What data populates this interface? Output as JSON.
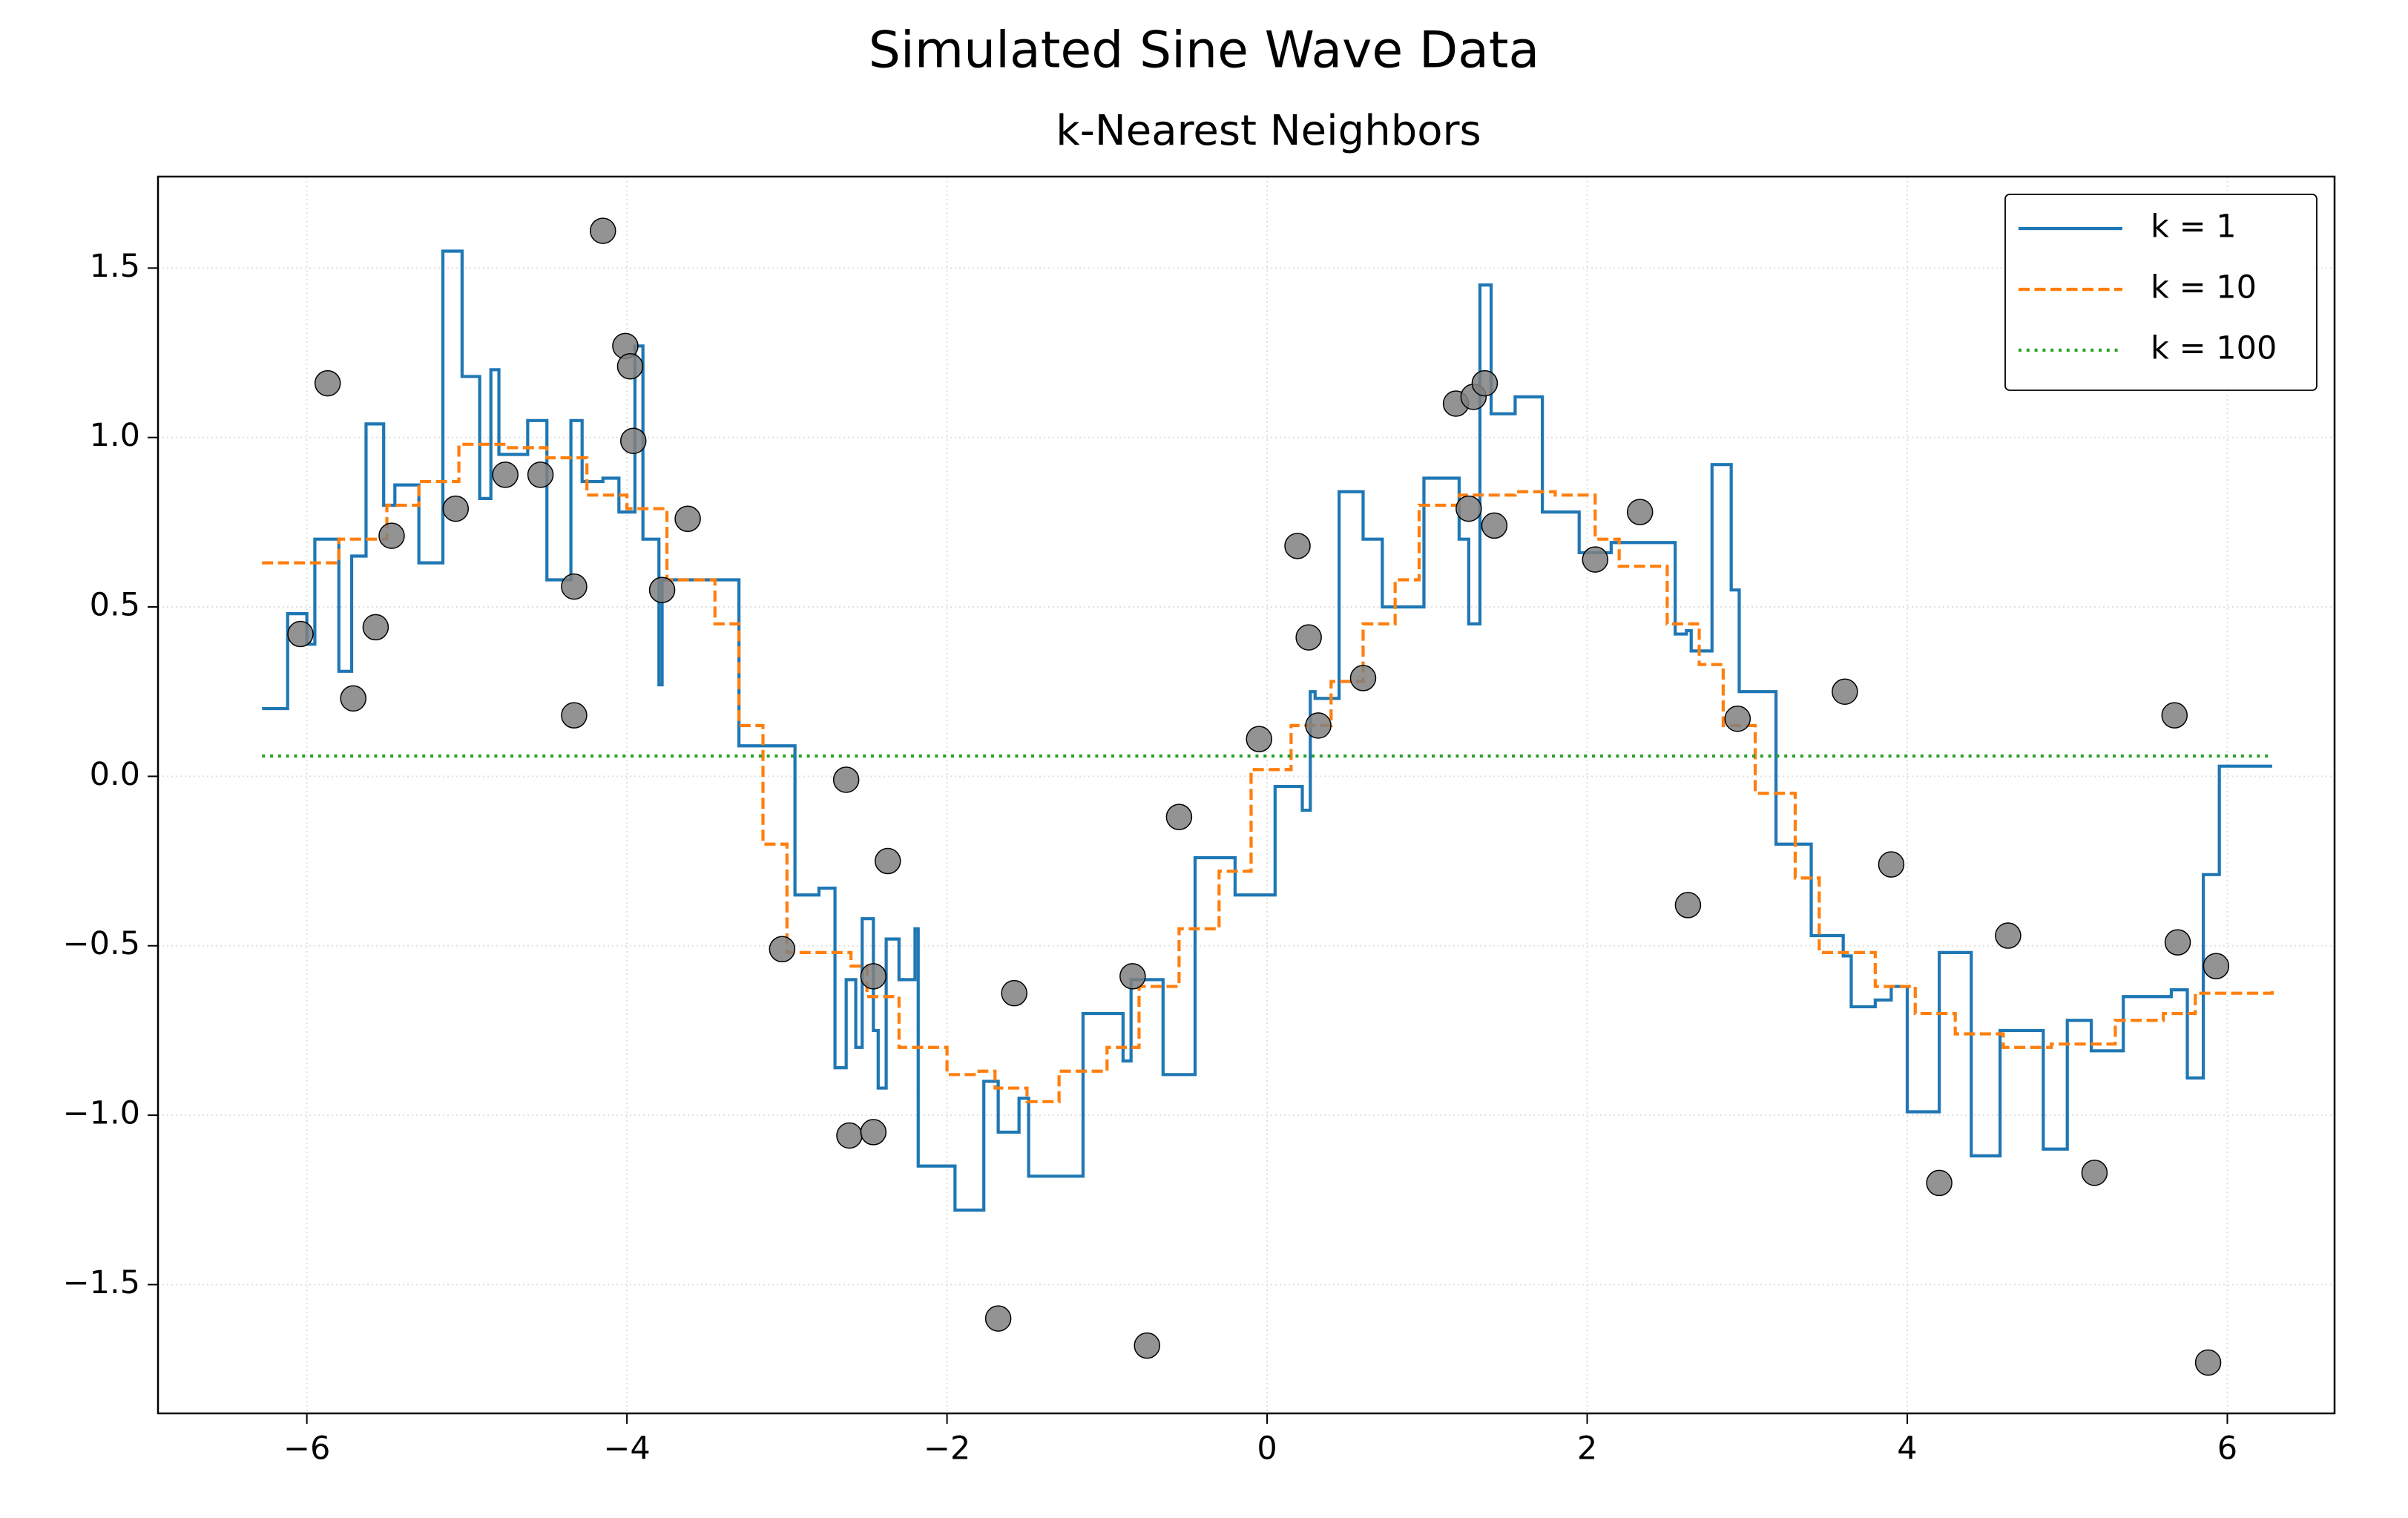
{
  "chart_data": {
    "type": "line",
    "title": "Simulated Sine Wave Data",
    "subtitle": "k-Nearest Neighbors",
    "step": "post",
    "grid": true,
    "legend": "upper right",
    "xlim": [
      -6.93,
      6.67
    ],
    "ylim": [
      -1.88,
      1.77
    ],
    "xticks": [
      {
        "value": -6,
        "label": "−6"
      },
      {
        "value": -4,
        "label": "−4"
      },
      {
        "value": -2,
        "label": "−2"
      },
      0,
      2,
      4,
      6
    ],
    "yticks": [
      {
        "value": -1.5,
        "label": "−1.5"
      },
      {
        "value": -1,
        "label": "−1.0"
      },
      {
        "value": -0.5,
        "label": "−0.5"
      },
      {
        "value": 0,
        "label": "0.0"
      },
      0.5,
      {
        "value": 1,
        "label": "1.0"
      },
      1.5
    ],
    "series": [
      {
        "name": "k = 1",
        "color": "#1f77b4",
        "dash": "solid",
        "x": [
          -6.28,
          -6.12,
          -6.0,
          -5.95,
          -5.8,
          -5.72,
          -5.63,
          -5.52,
          -5.45,
          -5.3,
          -5.15,
          -5.03,
          -4.92,
          -4.85,
          -4.8,
          -4.62,
          -4.5,
          -4.35,
          -4.28,
          -4.15,
          -4.05,
          -3.95,
          -3.9,
          -3.8,
          -3.78,
          -3.4,
          -3.3,
          -2.95,
          -2.8,
          -2.7,
          -2.63,
          -2.57,
          -2.53,
          -2.46,
          -2.43,
          -2.38,
          -2.3,
          -2.2,
          -2.18,
          -1.95,
          -1.77,
          -1.68,
          -1.55,
          -1.49,
          -1.15,
          -0.9,
          -0.85,
          -0.65,
          -0.45,
          -0.2,
          0.05,
          0.22,
          0.27,
          0.3,
          0.45,
          0.6,
          0.72,
          0.98,
          1.2,
          1.26,
          1.33,
          1.4,
          1.55,
          1.72,
          1.95,
          2.15,
          2.55,
          2.62,
          2.65,
          2.78,
          2.9,
          2.95,
          3.18,
          3.4,
          3.6,
          3.65,
          3.8,
          3.9,
          4.0,
          4.2,
          4.4,
          4.58,
          4.85,
          5.0,
          5.15,
          5.35,
          5.65,
          5.75,
          5.85,
          5.95,
          6.28
        ],
        "values": [
          0.2,
          0.48,
          0.39,
          0.7,
          0.31,
          0.65,
          1.04,
          0.8,
          0.86,
          0.63,
          1.55,
          1.18,
          0.82,
          1.2,
          0.95,
          1.05,
          0.58,
          1.05,
          0.87,
          0.88,
          0.78,
          1.27,
          0.7,
          0.27,
          0.58,
          0.58,
          0.09,
          -0.35,
          -0.33,
          -0.86,
          -0.6,
          -0.8,
          -0.42,
          -0.75,
          -0.92,
          -0.48,
          -0.6,
          -0.45,
          -1.15,
          -1.28,
          -0.9,
          -1.05,
          -0.95,
          -1.18,
          -0.7,
          -0.84,
          -0.6,
          -0.88,
          -0.24,
          -0.35,
          -0.03,
          -0.1,
          0.25,
          0.23,
          0.84,
          0.7,
          0.5,
          0.88,
          0.7,
          0.45,
          1.45,
          1.07,
          1.12,
          0.78,
          0.66,
          0.69,
          0.42,
          0.43,
          0.37,
          0.92,
          0.55,
          0.25,
          -0.2,
          -0.47,
          -0.53,
          -0.68,
          -0.66,
          -0.62,
          -0.99,
          -0.52,
          -1.12,
          -0.75,
          -1.1,
          -0.72,
          -0.81,
          -0.65,
          -0.63,
          -0.89,
          -0.29,
          0.03,
          0.03
        ]
      },
      {
        "name": "k = 10",
        "color": "#ff7f0e",
        "dash": "dashed",
        "x": [
          -6.28,
          -5.8,
          -5.5,
          -5.3,
          -5.05,
          -4.75,
          -4.5,
          -4.25,
          -4.0,
          -3.75,
          -3.45,
          -3.3,
          -3.15,
          -3.0,
          -2.6,
          -2.5,
          -2.3,
          -2.0,
          -1.8,
          -1.7,
          -1.5,
          -1.3,
          -1.0,
          -0.8,
          -0.55,
          -0.3,
          -0.1,
          0.15,
          0.4,
          0.6,
          0.8,
          0.95,
          1.2,
          1.55,
          1.8,
          2.05,
          2.2,
          2.5,
          2.7,
          2.85,
          3.05,
          3.3,
          3.45,
          3.8,
          4.05,
          4.3,
          4.6,
          4.9,
          5.3,
          5.6,
          5.8,
          6.28
        ],
        "values": [
          0.63,
          0.7,
          0.8,
          0.87,
          0.98,
          0.97,
          0.94,
          0.83,
          0.79,
          0.58,
          0.45,
          0.15,
          -0.2,
          -0.52,
          -0.56,
          -0.65,
          -0.8,
          -0.88,
          -0.87,
          -0.92,
          -0.96,
          -0.87,
          -0.8,
          -0.62,
          -0.45,
          -0.28,
          0.02,
          0.15,
          0.28,
          0.45,
          0.58,
          0.8,
          0.83,
          0.84,
          0.83,
          0.7,
          0.62,
          0.45,
          0.33,
          0.15,
          -0.05,
          -0.3,
          -0.52,
          -0.62,
          -0.7,
          -0.76,
          -0.8,
          -0.79,
          -0.72,
          -0.7,
          -0.64,
          -0.63
        ]
      },
      {
        "name": "k = 100",
        "color": "#2ca02c",
        "dash": "dotted",
        "x": [
          -6.28,
          6.28
        ],
        "values": [
          0.06,
          0.06
        ]
      }
    ],
    "points": {
      "color": "#808080",
      "x": [
        -6.04,
        -5.87,
        -5.71,
        -5.57,
        -5.47,
        -5.07,
        -4.76,
        -4.54,
        -4.33,
        -4.33,
        -4.15,
        -4.01,
        -3.98,
        -3.96,
        -3.78,
        -3.62,
        -3.03,
        -2.63,
        -2.61,
        -2.46,
        -2.46,
        -2.37,
        -1.68,
        -1.58,
        -0.84,
        -0.75,
        -0.55,
        -0.05,
        0.19,
        0.26,
        0.32,
        0.6,
        1.18,
        1.26,
        1.29,
        1.36,
        1.42,
        2.05,
        2.33,
        2.63,
        2.94,
        3.61,
        3.9,
        4.2,
        4.63,
        5.17,
        5.67,
        5.69,
        5.88,
        5.93
      ],
      "y": [
        0.42,
        1.16,
        0.23,
        0.44,
        0.71,
        0.79,
        0.89,
        0.89,
        0.56,
        0.18,
        1.61,
        1.27,
        1.21,
        0.99,
        0.55,
        0.76,
        -0.51,
        -0.01,
        -1.06,
        -1.05,
        -0.59,
        -0.25,
        -1.6,
        -0.64,
        -0.59,
        -1.68,
        -0.12,
        0.11,
        0.68,
        0.41,
        0.15,
        0.29,
        1.1,
        0.79,
        1.12,
        1.16,
        0.74,
        0.64,
        0.78,
        -0.38,
        0.17,
        0.25,
        -0.26,
        -1.2,
        -0.47,
        -1.17,
        0.18,
        -0.49,
        -1.73,
        -0.56
      ]
    }
  }
}
